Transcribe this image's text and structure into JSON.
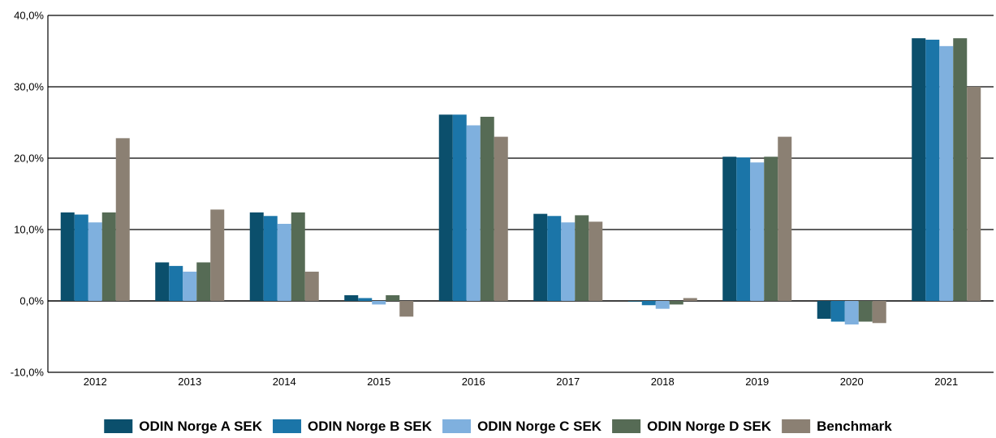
{
  "chart_data": {
    "type": "bar",
    "categories": [
      "2012",
      "2013",
      "2014",
      "2015",
      "2016",
      "2017",
      "2018",
      "2019",
      "2020",
      "2021"
    ],
    "series": [
      {
        "name": "ODIN Norge A SEK",
        "color": "#0b4f6c",
        "values": [
          12.4,
          5.4,
          12.4,
          0.8,
          26.1,
          12.2,
          -0.1,
          20.2,
          -2.5,
          36.8
        ]
      },
      {
        "name": "ODIN Norge B SEK",
        "color": "#1b75a8",
        "values": [
          12.1,
          4.9,
          11.9,
          0.4,
          26.1,
          11.9,
          -0.6,
          20.1,
          -2.9,
          36.6
        ]
      },
      {
        "name": "ODIN Norge C SEK",
        "color": "#7fb0de",
        "values": [
          11.0,
          4.1,
          10.8,
          -0.5,
          24.6,
          11.0,
          -1.1,
          19.4,
          -3.3,
          35.7
        ]
      },
      {
        "name": "ODIN Norge D SEK",
        "color": "#566b55",
        "values": [
          12.4,
          5.4,
          12.4,
          0.8,
          25.8,
          12.0,
          -0.5,
          20.2,
          -2.9,
          36.8
        ]
      },
      {
        "name": "Benchmark",
        "color": "#8b8073",
        "values": [
          22.8,
          12.8,
          4.1,
          -2.2,
          23.0,
          11.1,
          0.4,
          23.0,
          -3.1,
          30.0
        ]
      }
    ],
    "yticks": [
      "-10,0%",
      "0,0%",
      "10,0%",
      "20,0%",
      "30,0%",
      "40,0%"
    ],
    "ylim": [
      -10,
      40
    ],
    "grid": true,
    "legend_position": "bottom"
  }
}
